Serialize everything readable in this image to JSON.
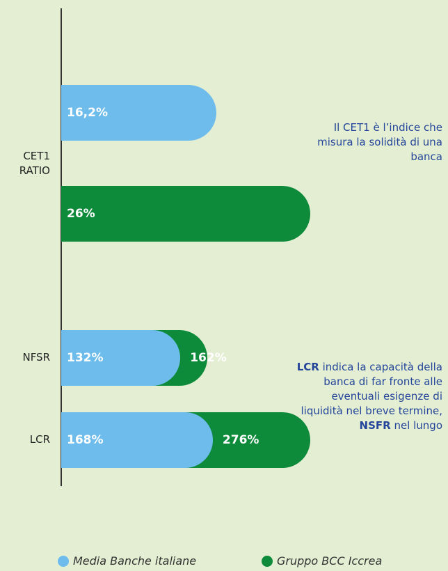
{
  "chart_data": {
    "type": "bar",
    "categories": [
      "CET1 RATIO",
      "NFSR",
      "LCR"
    ],
    "series": [
      {
        "name": "Media Banche italiane",
        "color": "#6dbcec",
        "values": [
          16.2,
          132,
          168
        ],
        "value_labels": [
          "16,2%",
          "132%",
          "168%"
        ]
      },
      {
        "name": "Gruppo BCC Iccrea",
        "color": "#0e8a3b",
        "values": [
          26,
          162,
          276
        ],
        "value_labels": [
          "26%",
          "162%",
          "276%"
        ]
      }
    ],
    "annotations": [
      [
        {
          "text": "Il CET1 è l’indice che misura la solidità di una banca",
          "bold": false
        }
      ],
      [
        {
          "text": "LCR",
          "bold": true
        },
        {
          "text": " indica la capacità della banca di far fronte alle eventuali esigenze di liquidità nel breve termine, ",
          "bold": false
        },
        {
          "text": "NSFR",
          "bold": true
        },
        {
          "text": " nel lungo",
          "bold": false
        }
      ]
    ]
  }
}
